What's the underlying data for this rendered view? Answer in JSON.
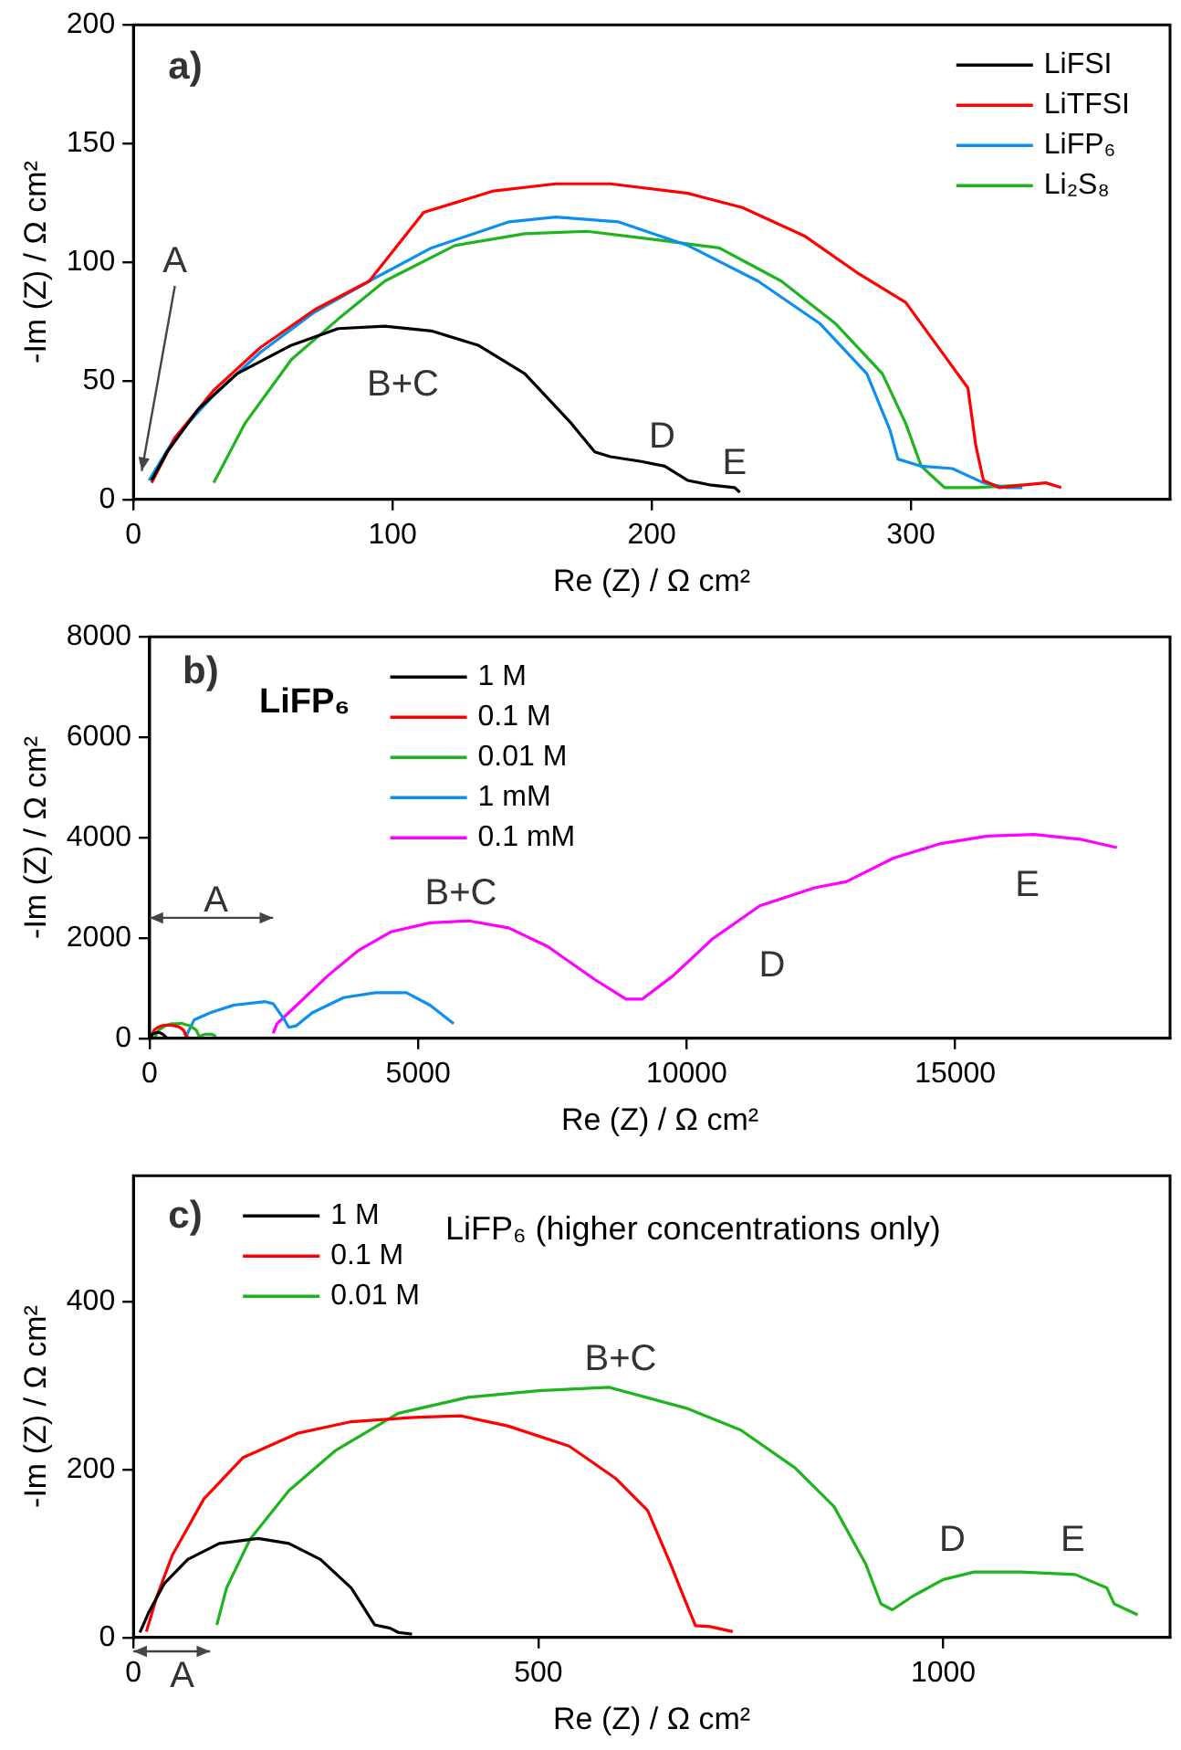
{
  "chart_data": [
    {
      "type": "line",
      "xlabel": "Re (Z) / Ω cm²",
      "ylabel": "-Im (Z) / Ω cm²",
      "xlim": [
        0,
        400
      ],
      "ylim": [
        0,
        200
      ],
      "xticks": [
        0,
        100,
        200,
        300
      ],
      "yticks": [
        0,
        50,
        100,
        150,
        200
      ],
      "grid": false,
      "legend": "top right",
      "marker": "none",
      "annotations": [
        "a)",
        "A",
        "B+C",
        "D",
        "E"
      ],
      "series": [
        {
          "name": "LiFSI",
          "color": "#000000",
          "x": [
            7,
            13,
            25,
            40,
            61,
            79,
            97,
            115,
            133,
            151,
            169,
            178,
            184,
            196,
            205,
            214,
            223,
            232,
            234
          ],
          "values": [
            8,
            20,
            38,
            53,
            65,
            72,
            73,
            71,
            65,
            53,
            32,
            20,
            18,
            16,
            14,
            8,
            6,
            5,
            3
          ]
        },
        {
          "name": "LiTFSI",
          "color": "#ff0000",
          "x": [
            7,
            16,
            31,
            49,
            70,
            91,
            112,
            139,
            163,
            184,
            214,
            235,
            259,
            280,
            298,
            310,
            322,
            325,
            328,
            334,
            343,
            352,
            358
          ],
          "values": [
            7,
            26,
            46,
            64,
            80,
            92,
            121,
            130,
            133,
            133,
            129,
            123,
            111,
            95,
            83,
            65,
            47,
            23,
            8,
            5,
            6,
            7,
            5
          ]
        },
        {
          "name": "LiFP₆",
          "color": "#0d8ff0",
          "x": [
            6,
            16,
            31,
            49,
            70,
            91,
            115,
            145,
            163,
            187,
            214,
            241,
            265,
            283,
            292,
            295,
            304,
            316,
            328,
            337,
            343
          ],
          "values": [
            8,
            26,
            44,
            62,
            79,
            92,
            106,
            117,
            119,
            117,
            107,
            92,
            74,
            53,
            29,
            17,
            14,
            13,
            7,
            5,
            5
          ]
        },
        {
          "name": "Li₂S₈",
          "color": "#1eb41e",
          "x": [
            31,
            43,
            61,
            79,
            97,
            124,
            151,
            175,
            205,
            226,
            250,
            271,
            289,
            298,
            304,
            313,
            325,
            343
          ],
          "values": [
            7,
            32,
            59,
            76,
            92,
            107,
            112,
            113,
            109,
            106,
            92,
            74,
            53,
            32,
            14,
            5,
            5,
            6
          ]
        }
      ]
    },
    {
      "type": "line",
      "xlabel": "Re (Z) / Ω cm²",
      "ylabel": "-Im (Z) / Ω cm²",
      "xlim": [
        0,
        19000
      ],
      "ylim": [
        0,
        8000
      ],
      "xticks": [
        0,
        5000,
        10000,
        15000
      ],
      "yticks": [
        0,
        2000,
        4000,
        6000,
        8000
      ],
      "grid": false,
      "legend": "top left",
      "legend_title": "LiFP₆",
      "marker": "none",
      "annotations": [
        "b)",
        "A",
        "B+C",
        "D",
        "E"
      ],
      "series": [
        {
          "name": "1 M",
          "color": "#000000",
          "x": [
            10,
            20,
            40,
            70,
            110,
            150,
            190,
            230,
            270,
            290,
            300,
            320,
            330,
            340
          ],
          "values": [
            10,
            30,
            60,
            90,
            110,
            120,
            110,
            90,
            60,
            30,
            20,
            10,
            10,
            0
          ]
        },
        {
          "name": "0.1 M",
          "color": "#ff0000",
          "x": [
            30,
            50,
            90,
            140,
            200,
            270,
            350,
            400,
            460,
            540,
            600,
            640,
            660,
            680,
            690,
            710,
            740
          ],
          "values": [
            50,
            100,
            170,
            210,
            240,
            260,
            260,
            260,
            250,
            230,
            190,
            150,
            90,
            40,
            10,
            10,
            10
          ]
        },
        {
          "name": "0.01 M",
          "color": "#1eb41e",
          "x": [
            100,
            120,
            140,
            190,
            250,
            330,
            410,
            500,
            590,
            680,
            750,
            820,
            870,
            900,
            920,
            940,
            960,
            1000,
            1040,
            1100,
            1160,
            1200,
            1210,
            1240
          ],
          "values": [
            20,
            60,
            120,
            180,
            220,
            270,
            290,
            290,
            300,
            270,
            250,
            200,
            160,
            90,
            40,
            30,
            50,
            70,
            80,
            80,
            80,
            60,
            40,
            30
          ]
        },
        {
          "name": "1 mM",
          "color": "#0d8ff0",
          "x": [
            690,
            830,
            1130,
            1560,
            2150,
            2300,
            2510,
            2590,
            2730,
            3030,
            3610,
            4200,
            4780,
            5220,
            5660
          ],
          "values": [
            70,
            370,
            510,
            660,
            730,
            690,
            370,
            220,
            250,
            510,
            810,
            910,
            910,
            660,
            290
          ]
        },
        {
          "name": "0.1 mM",
          "color": "#ff00ff",
          "x": [
            2300,
            2370,
            2590,
            3320,
            3900,
            4490,
            5220,
            5950,
            6680,
            7410,
            8290,
            8870,
            9170,
            9750,
            10480,
            11360,
            12380,
            12970,
            13850,
            14730,
            15600,
            16480,
            17360,
            18010
          ],
          "values": [
            100,
            290,
            510,
            1250,
            1760,
            2120,
            2300,
            2340,
            2200,
            1830,
            1170,
            780,
            780,
            1250,
            1980,
            2640,
            3000,
            3120,
            3590,
            3880,
            4030,
            4060,
            3960,
            3800
          ]
        }
      ]
    },
    {
      "type": "line",
      "title": "LiFP₆ (higher concentrations only)",
      "xlabel": "Re (Z) / Ω cm²",
      "ylabel": "-Im (Z) / Ω cm²",
      "xlim": [
        0,
        1280
      ],
      "ylim": [
        0,
        550
      ],
      "xticks": [
        0,
        500,
        1000
      ],
      "yticks": [
        0,
        200,
        400
      ],
      "grid": false,
      "legend": "top left",
      "marker": "none",
      "annotations": [
        "c)",
        "A",
        "B+C",
        "D",
        "E"
      ],
      "series": [
        {
          "name": "1 M",
          "color": "#000000",
          "x": [
            8,
            19,
            38,
            67,
            106,
            154,
            192,
            231,
            269,
            288,
            298,
            317,
            327,
            344
          ],
          "values": [
            6,
            30,
            64,
            93,
            112,
            118,
            112,
            93,
            59,
            30,
            15,
            11,
            6,
            4
          ]
        },
        {
          "name": "0.1 M",
          "color": "#ff0000",
          "x": [
            16,
            29,
            48,
            87,
            135,
            202,
            269,
            346,
            404,
            462,
            538,
            596,
            635,
            663,
            683,
            694,
            712,
            740
          ],
          "values": [
            7,
            49,
            98,
            165,
            214,
            243,
            257,
            262,
            264,
            252,
            228,
            189,
            151,
            88,
            40,
            14,
            13,
            7
          ]
        },
        {
          "name": "0.01 M",
          "color": "#1eb41e",
          "x": [
            103,
            115,
            144,
            192,
            250,
            327,
            413,
            500,
            587,
            683,
            750,
            817,
            865,
            904,
            923,
            937,
            962,
            1000,
            1038,
            1096,
            1163,
            1202,
            1211,
            1240
          ],
          "values": [
            15,
            59,
            117,
            175,
            223,
            267,
            286,
            294,
            298,
            273,
            247,
            202,
            156,
            88,
            40,
            33,
            49,
            69,
            78,
            78,
            75,
            59,
            40,
            27
          ]
        }
      ]
    }
  ]
}
